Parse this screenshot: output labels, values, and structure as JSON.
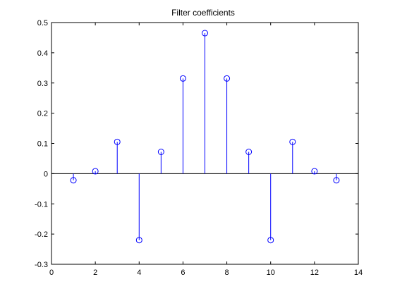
{
  "chart_data": {
    "type": "stem",
    "title": "Filter coefficients",
    "xlabel": "",
    "ylabel": "",
    "xlim": [
      0,
      14
    ],
    "ylim": [
      -0.3,
      0.5
    ],
    "xticks": [
      0,
      2,
      4,
      6,
      8,
      10,
      12,
      14
    ],
    "yticks": [
      -0.3,
      -0.2,
      -0.1,
      0,
      0.1,
      0.2,
      0.3,
      0.4,
      0.5
    ],
    "xtick_labels": [
      "0",
      "2",
      "4",
      "6",
      "8",
      "10",
      "12",
      "14"
    ],
    "ytick_labels": [
      "-0.3",
      "-0.2",
      "-0.1",
      "0",
      "0.1",
      "0.2",
      "0.3",
      "0.4",
      "0.5"
    ],
    "grid": false,
    "baseline": 0,
    "series": [
      {
        "color": "#0000ff",
        "marker": "circle",
        "x": [
          1,
          2,
          3,
          4,
          5,
          6,
          7,
          8,
          9,
          10,
          11,
          12,
          13
        ],
        "values": [
          -0.022,
          0.008,
          0.105,
          -0.22,
          0.072,
          0.315,
          0.465,
          0.315,
          0.072,
          -0.22,
          0.105,
          0.008,
          -0.022
        ]
      }
    ]
  }
}
